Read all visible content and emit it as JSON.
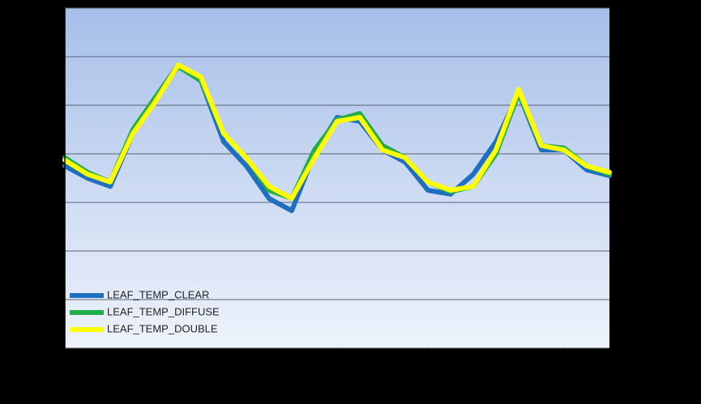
{
  "chart_data": {
    "type": "line",
    "x": [
      0,
      1,
      2,
      3,
      4,
      5,
      6,
      7,
      8,
      9,
      10,
      11,
      12,
      13,
      14,
      15,
      16,
      17,
      18,
      19,
      20,
      21,
      22,
      23,
      24
    ],
    "xlim": [
      0,
      24
    ],
    "xticks": [
      0,
      2,
      4,
      6,
      8,
      10,
      12,
      14,
      16,
      18,
      20,
      22,
      24
    ],
    "ylim": [
      0,
      7
    ],
    "yticks": [
      0,
      1,
      2,
      3,
      4,
      5,
      6,
      7
    ],
    "grid": true,
    "legend": "lower left",
    "series": [
      {
        "name": "LEAF_TEMP_CLEAR",
        "color": "#1f6fc0",
        "values": [
          3.75,
          3.5,
          3.33,
          4.42,
          5.17,
          5.83,
          5.5,
          4.25,
          3.75,
          3.08,
          2.83,
          4,
          4.75,
          4.67,
          4.08,
          3.83,
          3.25,
          3.17,
          3.58,
          4.25,
          5.25,
          4.08,
          4.08,
          3.67,
          3.55
        ]
      },
      {
        "name": "LEAF_TEMP_DIFFUSE",
        "color": "#1fae4a",
        "values": [
          3.92,
          3.62,
          3.42,
          4.5,
          5.17,
          5.8,
          5.5,
          4.42,
          3.92,
          3.25,
          3.08,
          4.08,
          4.7,
          4.83,
          4.17,
          3.92,
          3.42,
          3.22,
          3.33,
          4,
          5.25,
          4.17,
          4.12,
          3.75,
          3.58
        ]
      },
      {
        "name": "LEAF_TEMP_DOUBLE",
        "color": "#ffff00",
        "values": [
          3.87,
          3.58,
          3.42,
          4.42,
          5.08,
          5.83,
          5.58,
          4.42,
          3.92,
          3.33,
          3.08,
          3.92,
          4.67,
          4.75,
          4.08,
          3.92,
          3.42,
          3.25,
          3.33,
          4.08,
          5.33,
          4.17,
          4.08,
          3.75,
          3.62
        ]
      }
    ]
  }
}
